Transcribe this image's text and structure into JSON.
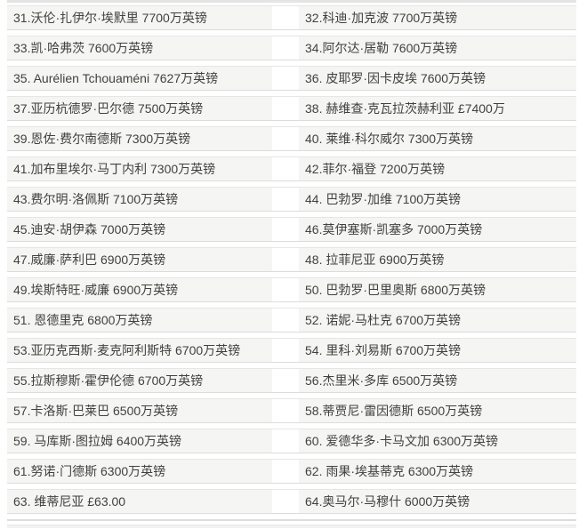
{
  "list": {
    "description": "Player transfer value ranking list, items 31-64",
    "currency_unit": "万英镑",
    "rows": [
      {
        "left": "31.沃伦·扎伊尔·埃默里 7700万英镑",
        "right": "32.科迪·加克波 7700万英镑"
      },
      {
        "left": "33.凯·哈弗茨 7600万英镑",
        "right": "34.阿尔达·居勒 7600万英镑"
      },
      {
        "left": "35. Aurélien Tchouaméni 7627万英镑",
        "right": "36. 皮耶罗·因卡皮埃 7600万英镑"
      },
      {
        "left": "37.亚历杭德罗·巴尔德 7500万英镑",
        "right": "38. 赫维查·克瓦拉茨赫利亚 £7400万"
      },
      {
        "left": "39.恩佐·费尔南德斯 7300万英镑",
        "right": "40. 莱维·科尔威尔 7300万英镑"
      },
      {
        "left": "41.加布里埃尔·马丁内利 7300万英镑",
        "right": "42.菲尔·福登 7200万英镑"
      },
      {
        "left": "43.费尔明·洛佩斯 7100万英镑",
        "right": "44. 巴勃罗·加维 7100万英镑"
      },
      {
        "left": "45.迪安·胡伊森 7000万英镑",
        "right": "46.莫伊塞斯·凯塞多 7000万英镑"
      },
      {
        "left": "47.威廉·萨利巴 6900万英镑",
        "right": "48. 拉菲尼亚 6900万英镑"
      },
      {
        "left": "49.埃斯特旺·威廉 6900万英镑",
        "right": "50. 巴勃罗·巴里奥斯 6800万英镑"
      },
      {
        "left": "51. 恩德里克 6800万英镑",
        "right": "52. 诺妮·马杜克 6700万英镑"
      },
      {
        "left": "53.亚历克西斯·麦克阿利斯特 6700万英镑",
        "right": "54. 里科·刘易斯 6700万英镑"
      },
      {
        "left": "55.拉斯穆斯·霍伊伦德 6700万英镑",
        "right": "56.杰里米·多库 6500万英镑"
      },
      {
        "left": "57.卡洛斯·巴莱巴 6500万英镑",
        "right": "58.蒂贾尼·雷因德斯 6500万英镑"
      },
      {
        "left": "59. 马库斯·图拉姆 6400万英镑",
        "right": "60. 爱德华多·卡马文加 6300万英镑"
      },
      {
        "left": "61.努诺·门德斯 6300万英镑",
        "right": "62. 雨果·埃基蒂克 6300万英镑"
      },
      {
        "left": "63. 维蒂尼亚 £63.00",
        "right": "64.奥马尔·马穆什 6000万英镑"
      }
    ],
    "colors": {
      "cell_background": "#f5f5f4",
      "border_line": "#dcdcdc",
      "text": "#414141"
    }
  }
}
